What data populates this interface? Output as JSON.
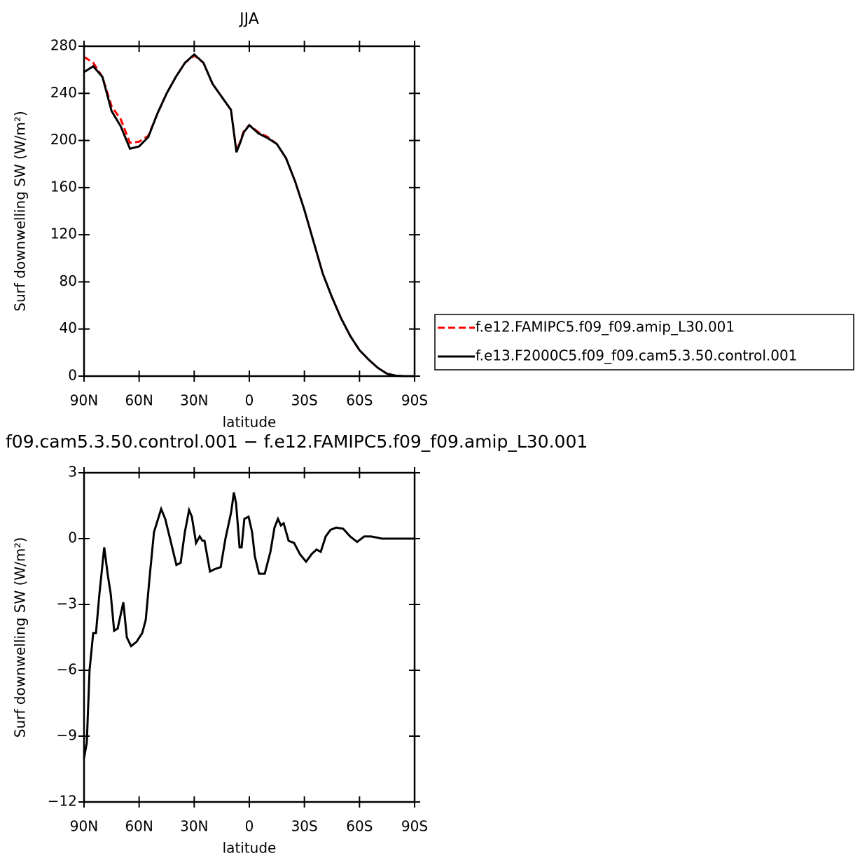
{
  "chart_data": [
    {
      "type": "line",
      "title": "JJA",
      "x_label": "latitude",
      "y_label": "Surf downwelling SW (W/m²)",
      "x": [
        90,
        85,
        80,
        75,
        70,
        65,
        60,
        55,
        50,
        45,
        40,
        35,
        30,
        25,
        20,
        15,
        10,
        7,
        5,
        3,
        0,
        -5,
        -10,
        -15,
        -20,
        -25,
        -30,
        -35,
        -40,
        -45,
        -50,
        -55,
        -60,
        -65,
        -70,
        -75,
        -80,
        -85,
        -90
      ],
      "series": [
        {
          "name": "f.e12.FAMIPC5.f09_f09.amip_L30.001",
          "color": "#ff0000",
          "style": "dashed",
          "values": [
            271,
            266,
            254,
            229,
            218,
            198,
            199,
            204,
            223,
            240,
            254,
            266,
            272,
            266,
            248,
            237,
            226,
            191,
            199,
            208,
            213,
            207,
            203,
            197,
            185,
            165,
            141,
            114,
            87,
            67,
            49,
            34,
            22,
            14,
            7,
            2,
            0.3,
            0,
            0
          ]
        },
        {
          "name": "f.e13.F2000C5.f09_f09.cam5.3.50.control.001",
          "color": "#000000",
          "style": "solid",
          "values": [
            258,
            263,
            254,
            225,
            212,
            193,
            195,
            203,
            223,
            240,
            254,
            266,
            273,
            266,
            248,
            237,
            226,
            190,
            198,
            207,
            213,
            206,
            202,
            197,
            185,
            165,
            141,
            114,
            87,
            67,
            49,
            34,
            22,
            14,
            7,
            2,
            0.3,
            0,
            0
          ]
        }
      ],
      "xlim": [
        90,
        -90
      ],
      "xticks": [
        {
          "value": 90,
          "label": "90N"
        },
        {
          "value": 60,
          "label": "60N"
        },
        {
          "value": 30,
          "label": "30N"
        },
        0,
        {
          "value": -30,
          "label": "30S"
        },
        {
          "value": -60,
          "label": "60S"
        },
        {
          "value": -90,
          "label": "90S"
        }
      ],
      "ylim": [
        0,
        280
      ],
      "yticks": [
        0,
        40,
        80,
        120,
        160,
        200,
        240,
        280
      ],
      "legend": "right"
    },
    {
      "type": "line",
      "title": "f09.cam5.3.50.control.001 − f.e12.FAMIPC5.f09_f09.amip_L30.001",
      "x_label": "latitude",
      "y_label": "Surf downwelling SW (W/m²)",
      "x": [
        90,
        88.5,
        87,
        85,
        83.5,
        81.6,
        79,
        77,
        75.5,
        73.6,
        71.7,
        68.6,
        66.7,
        64.4,
        61.4,
        58.3,
        56.4,
        54,
        51.9,
        48,
        45.8,
        42.3,
        39.7,
        37.4,
        35.1,
        32.8,
        31.3,
        29,
        27,
        25.5,
        24.4,
        21.4,
        19.1,
        15.6,
        13,
        9.9,
        8.4,
        7.2,
        5.3,
        4.2,
        2.7,
        0.4,
        -1.5,
        -3,
        -5.3,
        -8.4,
        -11.5,
        -13.7,
        -15.6,
        -17.2,
        -18.7,
        -21.4,
        -24.4,
        -27.5,
        -30.9,
        -34,
        -36.6,
        -38.9,
        -41.6,
        -44.2,
        -47.3,
        -51.1,
        -54.9,
        -58.7,
        -62.6,
        -66.4,
        -72.1,
        -90
      ],
      "series": [
        {
          "color": "#000000",
          "style": "solid",
          "values": [
            -10,
            -9.3,
            -6,
            -4.3,
            -4.3,
            -2.5,
            -0.4,
            -1.7,
            -2.5,
            -4.2,
            -4.1,
            -2.9,
            -4.5,
            -4.9,
            -4.7,
            -4.3,
            -3.7,
            -1.5,
            0.3,
            1.35,
            0.9,
            -0.3,
            -1.2,
            -1.1,
            0.3,
            1.3,
            1.0,
            -0.2,
            0.1,
            -0.1,
            -0.1,
            -1.5,
            -1.4,
            -1.3,
            0.0,
            1.2,
            2.1,
            1.6,
            -0.4,
            -0.4,
            0.9,
            1.0,
            0.3,
            -0.8,
            -1.6,
            -1.6,
            -0.6,
            0.5,
            0.9,
            0.6,
            0.7,
            -0.1,
            -0.2,
            -0.7,
            -1.05,
            -0.7,
            -0.5,
            -0.6,
            0.1,
            0.4,
            0.5,
            0.45,
            0.1,
            -0.15,
            0.1,
            0.1,
            0.0,
            0
          ]
        }
      ],
      "xlim": [
        90,
        -90
      ],
      "xticks": [
        {
          "value": 90,
          "label": "90N"
        },
        {
          "value": 60,
          "label": "60N"
        },
        {
          "value": 30,
          "label": "30N"
        },
        0,
        {
          "value": -30,
          "label": "30S"
        },
        {
          "value": -60,
          "label": "60S"
        },
        {
          "value": -90,
          "label": "90S"
        }
      ],
      "ylim": [
        -12,
        3
      ],
      "yticks": [
        {
          "value": -12,
          "label": "−12"
        },
        {
          "value": -9,
          "label": "−9"
        },
        {
          "value": -6,
          "label": "−6"
        },
        {
          "value": -3,
          "label": "−3"
        },
        0,
        3
      ]
    }
  ]
}
